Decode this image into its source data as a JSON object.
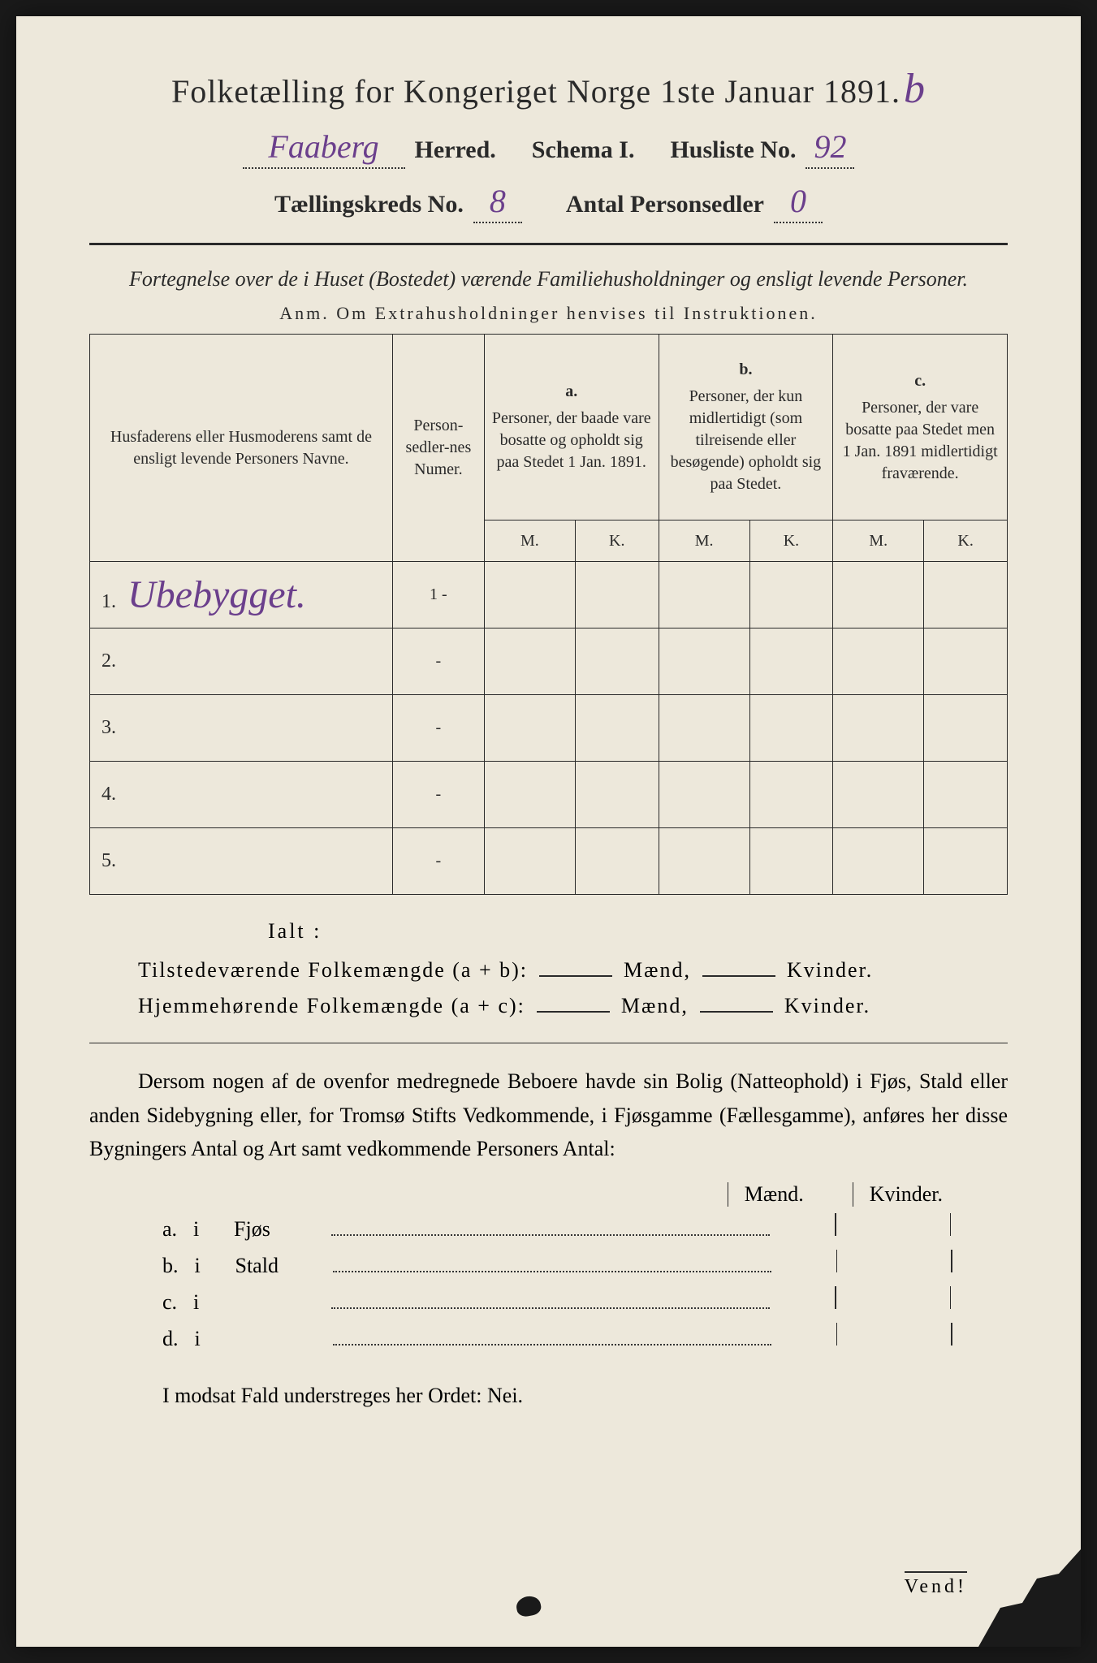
{
  "header": {
    "title_prefix": "Folketælling for Kongeriget Norge 1ste Januar 1891.",
    "title_suffix_hw": "b",
    "herred_hw": "Faaberg",
    "herred_label": "Herred.",
    "schema_label": "Schema I.",
    "husliste_label": "Husliste No.",
    "husliste_hw": "92",
    "kreds_label": "Tællingskreds No.",
    "kreds_hw": "8",
    "antal_label": "Antal Personsedler",
    "antal_hw": "0"
  },
  "subtitle": {
    "line": "Fortegnelse over de i Huset (Bostedet) værende Familiehusholdninger og ensligt levende Personer.",
    "anm": "Anm.  Om Extrahusholdninger henvises til Instruktionen."
  },
  "table": {
    "col1_header": "Husfaderens eller Husmoderens samt de ensligt levende Personers Navne.",
    "col2_header": "Person-sedler-nes Numer.",
    "col_a_label": "a.",
    "col_a_text": "Personer, der baade vare bosatte og opholdt sig paa Stedet 1 Jan. 1891.",
    "col_b_label": "b.",
    "col_b_text": "Personer, der kun midlertidigt (som tilreisende eller besøgende) opholdt sig paa Stedet.",
    "col_c_label": "c.",
    "col_c_text": "Personer, der vare bosatte paa Stedet men 1 Jan. 1891 midlertidigt fraværende.",
    "m": "M.",
    "k": "K.",
    "rows": [
      {
        "num": "1.",
        "name_hw": "Ubebygget.",
        "p": "1 -"
      },
      {
        "num": "2.",
        "name_hw": "",
        "p": "-"
      },
      {
        "num": "3.",
        "name_hw": "",
        "p": "-"
      },
      {
        "num": "4.",
        "name_hw": "",
        "p": "-"
      },
      {
        "num": "5.",
        "name_hw": "",
        "p": "-"
      }
    ]
  },
  "summary": {
    "ialt": "Ialt :",
    "line1_label": "Tilstedeværende Folkemængde (a + b):",
    "line2_label": "Hjemmehørende Folkemængde (a + c):",
    "maend": "Mænd,",
    "kvinder": "Kvinder."
  },
  "paragraph": {
    "text": "Dersom nogen af de ovenfor medregnede Beboere havde sin Bolig (Natteophold) i Fjøs, Stald eller anden Sidebygning eller, for Tromsø Stifts Vedkommende, i Fjøsgamme (Fællesgamme), anføres her disse Bygningers Antal og Art samt vedkommende Personers Antal:"
  },
  "buildings": {
    "m_header": "Mænd.",
    "k_header": "Kvinder.",
    "rows": [
      {
        "letter": "a.",
        "i": "i",
        "label": "Fjøs"
      },
      {
        "letter": "b.",
        "i": "i",
        "label": "Stald"
      },
      {
        "letter": "c.",
        "i": "i",
        "label": ""
      },
      {
        "letter": "d.",
        "i": "i",
        "label": ""
      }
    ]
  },
  "closing": {
    "text": "I modsat Fald understreges her Ordet: Nei."
  },
  "footer": {
    "vend": "Vend!"
  },
  "colors": {
    "paper": "#ede8db",
    "ink": "#2a2a2a",
    "handwriting": "#6b3f8c",
    "background": "#1a1a1a"
  }
}
